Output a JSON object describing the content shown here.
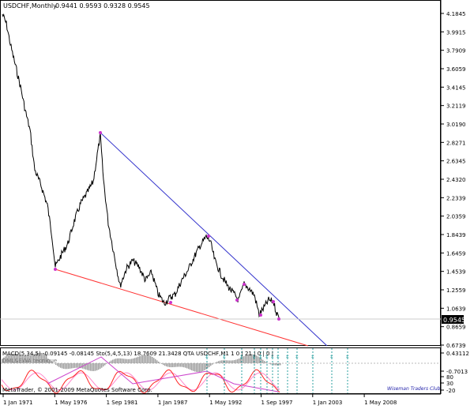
{
  "main_chart": {
    "symbol_label": "USDCHF,Monthly",
    "ohlc_text": "0.9441 0.9593 0.9328 0.9545",
    "price_ticks": [
      "4.1845",
      "3.9915",
      "3.7909",
      "3.6059",
      "3.4145",
      "3.2119",
      "3.0190",
      "2.8271",
      "2.6345",
      "2.4320",
      "2.2339",
      "2.0359",
      "1.8439",
      "1.6459",
      "1.4539",
      "1.2559",
      "1.0639",
      "0.8659",
      "0.6739"
    ],
    "current_price_label": "0.9545",
    "colors": {
      "price_line": "#000000",
      "upper_trendline": "#3333cc",
      "lower_trendline": "#ff3333",
      "pivot_marker": "#cc33cc",
      "current_price_box": "#000000"
    }
  },
  "indicator_panel": {
    "legend_text": "MACD(5,34,5) -0.09145 -0.08145  Sto(5,4,5,13) 18.7609 21.3428  QTA USDCHF,M1 1 0 | 21 | 0 | 0 |",
    "sub_label": "DML&EWA tecnique",
    "axis_ticks": [
      "0.43112",
      "-0.7013",
      "80",
      "30",
      "-20"
    ],
    "colors": {
      "macd_histogram": "#a0a0a0",
      "stochastic_main": "#ff2222",
      "stochastic_signal": "#ff88cc",
      "trendline": "#cc44cc",
      "vertical_markers": "#2ca0a0"
    }
  },
  "time_axis": {
    "labels": [
      "1 Jan 1971",
      "1 May 1976",
      "1 Sep 1981",
      "1 Jan 1987",
      "1 May 1992",
      "1 Sep 1997",
      "1 Jan 2003",
      "1 May 2008"
    ]
  },
  "footer": {
    "copyright": "MetaTrader, © 2001-2009 MetaQuotes Software Corp.",
    "watermark": "Wiseman Traders Club"
  }
}
